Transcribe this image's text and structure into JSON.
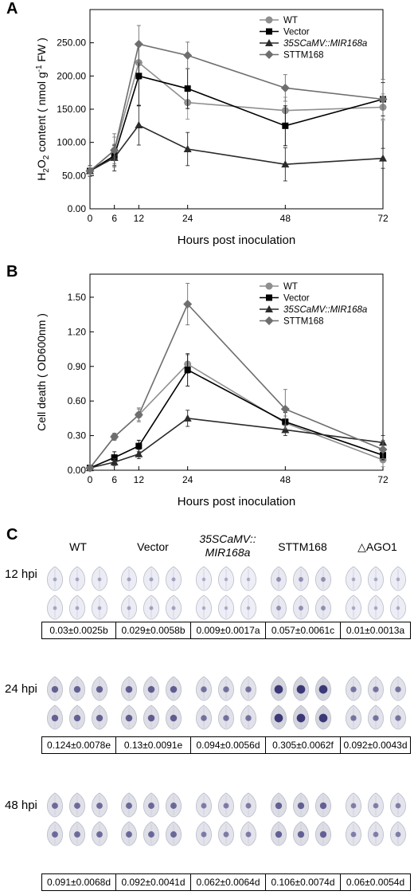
{
  "panel_a": {
    "letter": "A",
    "chart_data": {
      "type": "line",
      "xlabel": "Hours post inoculation",
      "ylabel": "H2O2 content ( nmol g-1 FW )",
      "x": [
        0,
        6,
        12,
        24,
        48,
        72
      ],
      "xlim": [
        0,
        72
      ],
      "ylim": [
        0,
        300
      ],
      "x_ticks": [
        "0",
        "6",
        "12",
        "24",
        "48",
        "72"
      ],
      "y_ticks": [
        "0.00",
        "50.00",
        "100.00",
        "150.00",
        "200.00",
        "250.00"
      ],
      "y_tick_values": [
        0,
        50,
        100,
        150,
        200,
        250
      ],
      "legend": "top-right",
      "series": [
        {
          "name": "WT",
          "values": [
            57,
            88,
            220,
            160,
            148,
            153
          ],
          "err": [
            8,
            20,
            25,
            25,
            20,
            20
          ],
          "color": "#8f8f8f",
          "marker": "circle"
        },
        {
          "name": "Vector",
          "values": [
            57,
            80,
            200,
            181,
            125,
            165
          ],
          "err": [
            8,
            15,
            45,
            30,
            30,
            25
          ],
          "color": "#000000",
          "marker": "square"
        },
        {
          "name": "35SCaMV::MIR168a",
          "values": [
            57,
            77,
            126,
            90,
            67,
            76
          ],
          "err": [
            8,
            20,
            30,
            25,
            25,
            15
          ],
          "color": "#2b2b2b",
          "marker": "triangle"
        },
        {
          "name": "STTM168",
          "values": [
            57,
            88,
            248,
            231,
            182,
            165
          ],
          "err": [
            8,
            25,
            28,
            20,
            20,
            30
          ],
          "color": "#6e6e6e",
          "marker": "diamond"
        }
      ]
    }
  },
  "panel_b": {
    "letter": "B",
    "chart_data": {
      "type": "line",
      "xlabel": "Hours post inoculation",
      "ylabel": "Cell death ( OD600nm )",
      "x": [
        0,
        6,
        12,
        24,
        48,
        72
      ],
      "xlim": [
        0,
        72
      ],
      "ylim": [
        0,
        1.7
      ],
      "x_ticks": [
        "0",
        "6",
        "12",
        "24",
        "48",
        "72"
      ],
      "y_ticks": [
        "0.00",
        "0.30",
        "0.60",
        "0.90",
        "1.20",
        "1.50"
      ],
      "y_tick_values": [
        0,
        0.3,
        0.6,
        0.9,
        1.2,
        1.5
      ],
      "legend": "top-right",
      "series": [
        {
          "name": "WT",
          "values": [
            0.02,
            0.29,
            0.48,
            0.92,
            0.41,
            0.09
          ],
          "err": [
            0.01,
            0.03,
            0.05,
            0.08,
            0.06,
            0.06
          ],
          "color": "#8f8f8f",
          "marker": "circle"
        },
        {
          "name": "Vector",
          "values": [
            0.02,
            0.11,
            0.21,
            0.87,
            0.42,
            0.13
          ],
          "err": [
            0.01,
            0.05,
            0.05,
            0.14,
            0.08,
            0.04
          ],
          "color": "#000000",
          "marker": "square"
        },
        {
          "name": "35SCaMV::MIR168a",
          "values": [
            0.02,
            0.07,
            0.14,
            0.45,
            0.35,
            0.24
          ],
          "err": [
            0.01,
            0.03,
            0.04,
            0.07,
            0.05,
            0.06
          ],
          "color": "#2b2b2b",
          "marker": "triangle"
        },
        {
          "name": "STTM168",
          "values": [
            0.02,
            0.29,
            0.48,
            1.44,
            0.53,
            0.18
          ],
          "err": [
            0.01,
            0.03,
            0.06,
            0.18,
            0.17,
            0.08
          ],
          "color": "#6e6e6e",
          "marker": "diamond"
        }
      ]
    }
  },
  "panel_c": {
    "letter": "C",
    "columns": [
      "WT",
      "Vector",
      "35SCaMV::",
      "STTM168",
      "△AGO1"
    ],
    "column3_line2": "MIR168a",
    "rows": [
      {
        "label": "12 hpi",
        "values": [
          "0.03±0.0025b",
          "0.029±0.0058b",
          "0.009±0.0017a",
          "0.057±0.0061c",
          "0.01±0.0013a"
        ],
        "stain": [
          0.12,
          0.15,
          0.08,
          0.28,
          0.1
        ]
      },
      {
        "label": "24 hpi",
        "values": [
          "0.124±0.0078e",
          "0.13±0.0091e",
          "0.094±0.0056d",
          "0.305±0.0062f",
          "0.092±0.0043d"
        ],
        "stain": [
          0.62,
          0.65,
          0.5,
          0.95,
          0.48
        ]
      },
      {
        "label": "48 hpi",
        "values": [
          "0.091±0.0068d",
          "0.092±0.0041d",
          "0.062±0.0064d",
          "0.106±0.0074d",
          "0.06±0.0054d"
        ],
        "stain": [
          0.55,
          0.56,
          0.42,
          0.62,
          0.4
        ]
      }
    ]
  }
}
